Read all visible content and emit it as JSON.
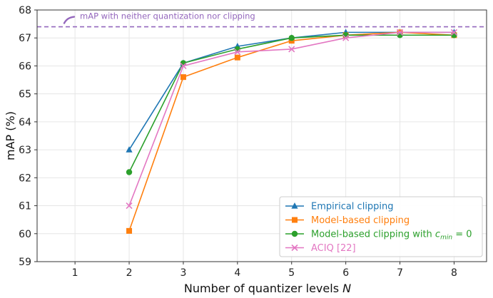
{
  "chart_data": {
    "type": "line",
    "title": "",
    "xlabel": "Number of quantizer levels",
    "xlabel_var": "N",
    "ylabel": "mAP (%)",
    "xlim": [
      0.3,
      8.6
    ],
    "ylim": [
      59,
      68
    ],
    "x_ticks": [
      1,
      2,
      3,
      4,
      5,
      6,
      7,
      8
    ],
    "y_ticks": [
      59,
      60,
      61,
      62,
      63,
      64,
      65,
      66,
      67,
      68
    ],
    "grid": true,
    "legend_position": "bottom-right",
    "reference_line": {
      "value": 67.4,
      "label": "mAP with neither quantization nor clipping",
      "color": "#9467bd"
    },
    "series": [
      {
        "name": "Empirical clipping",
        "color": "#1f77b4",
        "marker": "triangle",
        "x": [
          2,
          3,
          4,
          5,
          6,
          7,
          8
        ],
        "values": [
          63.0,
          66.1,
          66.7,
          67.0,
          67.2,
          67.2,
          67.2
        ]
      },
      {
        "name": "Model-based clipping",
        "color": "#ff7f0e",
        "marker": "square",
        "x": [
          2,
          3,
          4,
          5,
          6,
          7,
          8
        ],
        "values": [
          60.1,
          65.6,
          66.3,
          66.9,
          67.1,
          67.2,
          67.1
        ]
      },
      {
        "name": "Model-based clipping with",
        "name_math": "c",
        "name_sub": "min",
        "name_tail": " = 0",
        "color": "#2ca02c",
        "marker": "circle",
        "x": [
          2,
          3,
          4,
          5,
          6,
          7,
          8
        ],
        "values": [
          62.2,
          66.1,
          66.6,
          67.0,
          67.1,
          67.1,
          67.1
        ]
      },
      {
        "name": "ACIQ [22]",
        "color": "#e377c2",
        "marker": "x",
        "x": [
          2,
          3,
          4,
          5,
          6,
          7,
          8
        ],
        "values": [
          61.0,
          66.0,
          66.5,
          66.6,
          67.0,
          67.2,
          67.2
        ]
      }
    ]
  }
}
